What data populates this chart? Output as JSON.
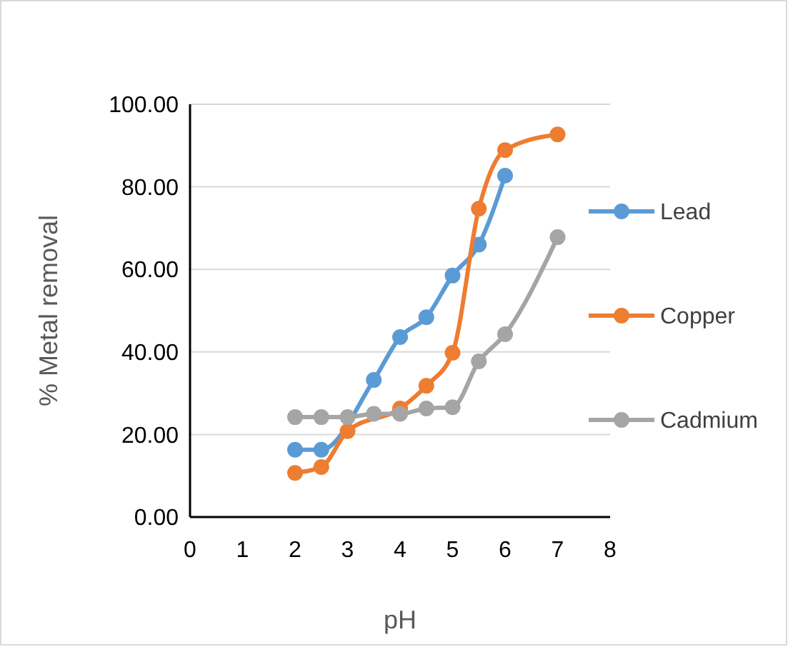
{
  "chart_data": {
    "type": "line",
    "xlabel": "pH",
    "ylabel": "% Metal removal",
    "x": [
      2,
      2.5,
      3,
      3.5,
      4,
      4.5,
      5,
      5.5,
      6,
      7
    ],
    "series": [
      {
        "name": "Lead",
        "color": "#5b9bd5",
        "values": [
          16.3,
          16.3,
          null,
          33.2,
          43.6,
          48.4,
          58.5,
          66,
          82.7,
          null
        ]
      },
      {
        "name": "Copper",
        "color": "#ed7d31",
        "values": [
          10.7,
          12.1,
          20.8,
          null,
          26.3,
          31.8,
          39.8,
          74.7,
          88.9,
          92.7
        ]
      },
      {
        "name": "Cadmium",
        "color": "#a5a5a5",
        "values": [
          24.2,
          24.2,
          24.2,
          25,
          25,
          26.3,
          26.6,
          37.7,
          44.3,
          67.8
        ]
      }
    ],
    "xlim": [
      0,
      8
    ],
    "xticks": [
      0,
      1,
      2,
      3,
      4,
      5,
      6,
      7,
      8
    ],
    "ylim": [
      0,
      100
    ],
    "yticks": [
      {
        "value": 0,
        "label": "0.00"
      },
      {
        "value": 20,
        "label": "20.00"
      },
      {
        "value": 40,
        "label": "40.00"
      },
      {
        "value": 60,
        "label": "60.00"
      },
      {
        "value": 80,
        "label": "80.00"
      },
      {
        "value": 100,
        "label": "100.00"
      }
    ],
    "grid": "y",
    "legend": "right",
    "marker": "circle",
    "line_style": "solid"
  }
}
